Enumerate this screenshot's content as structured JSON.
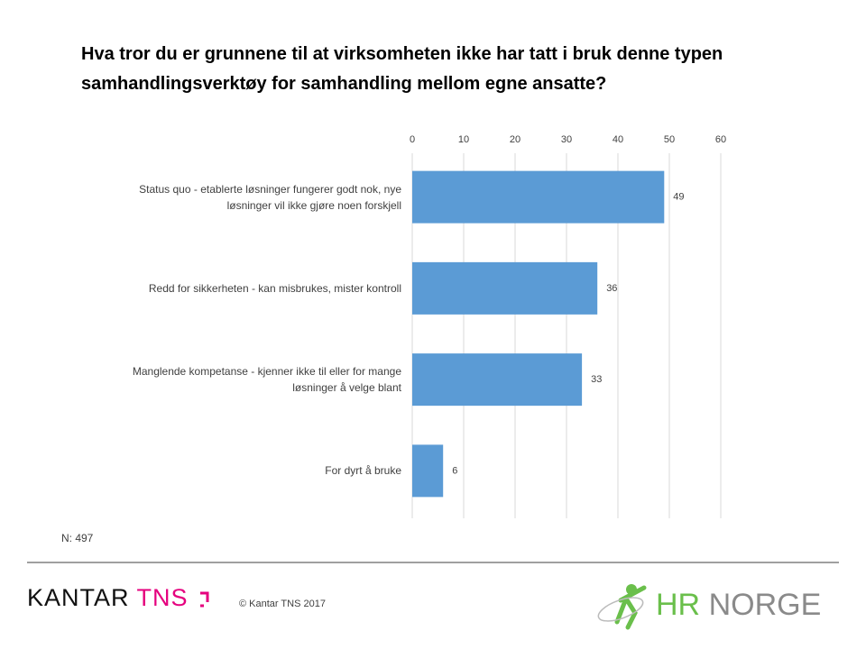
{
  "chart_data": {
    "type": "hbar",
    "title": "Hva tror du er grunnene til at virksomheten ikke har tatt i bruk denne typen samhandlingsverktøy for samhandling mellom egne ansatte?",
    "categories": [
      "Status quo - etablerte løsninger fungerer godt nok, nye løsninger vil ikke gjøre noen forskjell",
      "Redd for sikkerheten - kan misbrukes, mister kontroll",
      "Manglende kompetanse - kjenner ikke til eller for mange løsninger å velge blant",
      "For dyrt å bruke"
    ],
    "values": [
      49,
      36,
      33,
      6
    ],
    "color": "#5b9bd5",
    "xlim": [
      0,
      60
    ],
    "xticks": [
      0,
      10,
      20,
      30,
      40,
      50,
      60
    ],
    "grid": true
  },
  "footnote": "N:  497",
  "copyright": "© Kantar TNS 2017",
  "logos": {
    "kantar": "KANTAR",
    "tns": "TNS",
    "hr": "HR",
    "norge": "NORGE"
  }
}
